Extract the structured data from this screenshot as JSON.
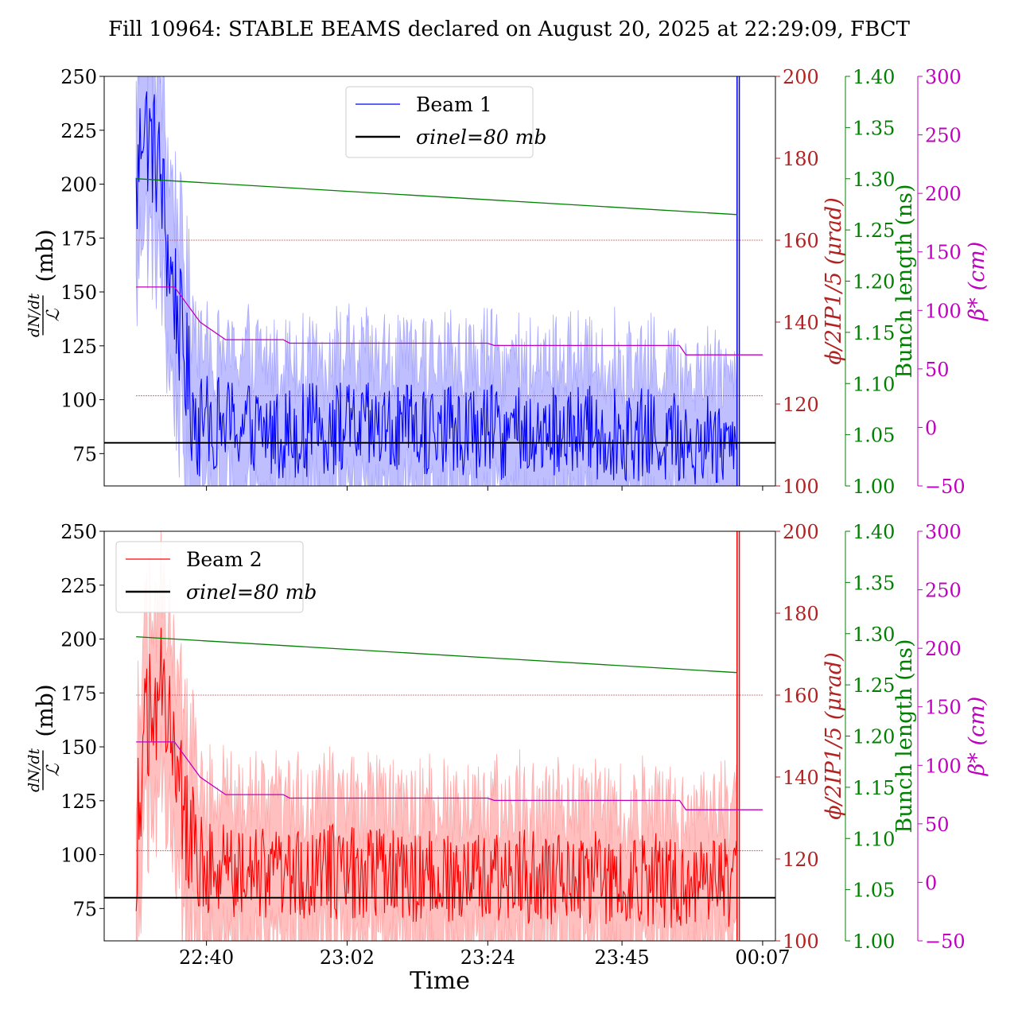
{
  "title": "Fill 10964: STABLE BEAMS declared on August 20, 2025 at 22:29:09, FBCT",
  "xlabel": "Time",
  "x_ticks": [
    "22:40",
    "23:02",
    "23:24",
    "23:45",
    "00:07"
  ],
  "colors": {
    "beam1": "#0000ff",
    "beam1_band": "#aaaaff",
    "beam2": "#ff0000",
    "beam2_band": "#ffaaaa",
    "crossing": "#b22222",
    "bunch": "#008000",
    "beta": "#c000c0",
    "sigma": "#000000"
  },
  "axes": {
    "left": {
      "label_top": "dN/dt",
      "label_bottom": "ℒ",
      "unit": "(mb)",
      "ticks": [
        75,
        100,
        125,
        150,
        175,
        200,
        225,
        250
      ],
      "ylim": [
        60,
        250
      ]
    },
    "crossing": {
      "label": "ϕ/2IP1/5 (μrad)",
      "ticks": [
        100,
        120,
        140,
        160,
        180,
        200
      ],
      "ylim": [
        100,
        200
      ]
    },
    "bunch": {
      "label": "Bunch length (ns)",
      "ticks": [
        "1.00",
        "1.05",
        "1.10",
        "1.15",
        "1.20",
        "1.25",
        "1.30",
        "1.35",
        "1.40"
      ],
      "ylim": [
        1.0,
        1.4
      ]
    },
    "beta": {
      "label": "β* (cm)",
      "ticks": [
        "−50",
        "0",
        "50",
        "100",
        "150",
        "200",
        "250",
        "300"
      ],
      "ylim": [
        -50,
        300
      ]
    }
  },
  "chart_data": [
    {
      "type": "line",
      "panel": "top",
      "xlim": [
        "22:24",
        "00:09"
      ],
      "legend": {
        "placement": "upper-center",
        "entries": [
          "Beam 1",
          "σinel=80 mb"
        ]
      },
      "series": [
        {
          "name": "Beam 1",
          "axis": "left",
          "x": [
            "22:29",
            "22:30",
            "22:31",
            "22:32",
            "22:33",
            "22:34",
            "22:35",
            "22:36",
            "22:37",
            "22:38",
            "22:40",
            "22:45",
            "22:50",
            "23:00",
            "23:10",
            "23:20",
            "23:30",
            "23:40",
            "23:50",
            "00:00",
            "00:03"
          ],
          "y": [
            190,
            235,
            220,
            215,
            200,
            165,
            150,
            130,
            110,
            95,
            90,
            88,
            85,
            87,
            85,
            86,
            84,
            85,
            83,
            82,
            80
          ]
        },
        {
          "name": "σinel=80 mb",
          "axis": "left",
          "y": 80
        },
        {
          "axis": "crossing",
          "x": [
            "22:29",
            "00:07"
          ],
          "y": [
            160,
            160
          ]
        },
        {
          "axis": "crossing",
          "x": [
            "22:29",
            "00:07"
          ],
          "y": [
            122,
            122
          ]
        },
        {
          "axis": "bunch",
          "x": [
            "22:29",
            "00:03"
          ],
          "y": [
            1.3,
            1.265
          ]
        },
        {
          "axis": "beta",
          "x": [
            "22:29",
            "22:35",
            "22:39",
            "22:43",
            "22:52",
            "22:53",
            "23:24",
            "23:25",
            "23:54",
            "23:55",
            "00:07"
          ],
          "y": [
            120,
            120,
            90,
            75,
            75,
            72,
            72,
            70,
            70,
            62,
            62
          ]
        }
      ]
    },
    {
      "type": "line",
      "panel": "bottom",
      "xlim": [
        "22:24",
        "00:09"
      ],
      "legend": {
        "placement": "upper-left",
        "entries": [
          "Beam 2",
          "σinel=80 mb"
        ]
      },
      "series": [
        {
          "name": "Beam 2",
          "axis": "left",
          "x": [
            "22:29",
            "22:30",
            "22:31",
            "22:32",
            "22:33",
            "22:34",
            "22:35",
            "22:36",
            "22:37",
            "22:38",
            "22:40",
            "22:45",
            "22:50",
            "23:00",
            "23:10",
            "23:20",
            "23:30",
            "23:40",
            "23:50",
            "00:00",
            "00:03"
          ],
          "y": [
            100,
            150,
            165,
            170,
            180,
            175,
            160,
            130,
            112,
            100,
            95,
            92,
            90,
            92,
            90,
            91,
            90,
            89,
            88,
            87,
            85
          ]
        },
        {
          "name": "σinel=80 mb",
          "axis": "left",
          "y": 80
        },
        {
          "axis": "crossing",
          "x": [
            "22:29",
            "00:07"
          ],
          "y": [
            160,
            160
          ]
        },
        {
          "axis": "crossing",
          "x": [
            "22:29",
            "00:07"
          ],
          "y": [
            122,
            122
          ]
        },
        {
          "axis": "bunch",
          "x": [
            "22:29",
            "00:03"
          ],
          "y": [
            1.297,
            1.262
          ]
        },
        {
          "axis": "beta",
          "x": [
            "22:29",
            "22:35",
            "22:39",
            "22:43",
            "22:52",
            "22:53",
            "23:24",
            "23:25",
            "23:54",
            "23:55",
            "00:07"
          ],
          "y": [
            120,
            120,
            90,
            75,
            75,
            72,
            72,
            70,
            70,
            62,
            62
          ]
        }
      ]
    }
  ]
}
